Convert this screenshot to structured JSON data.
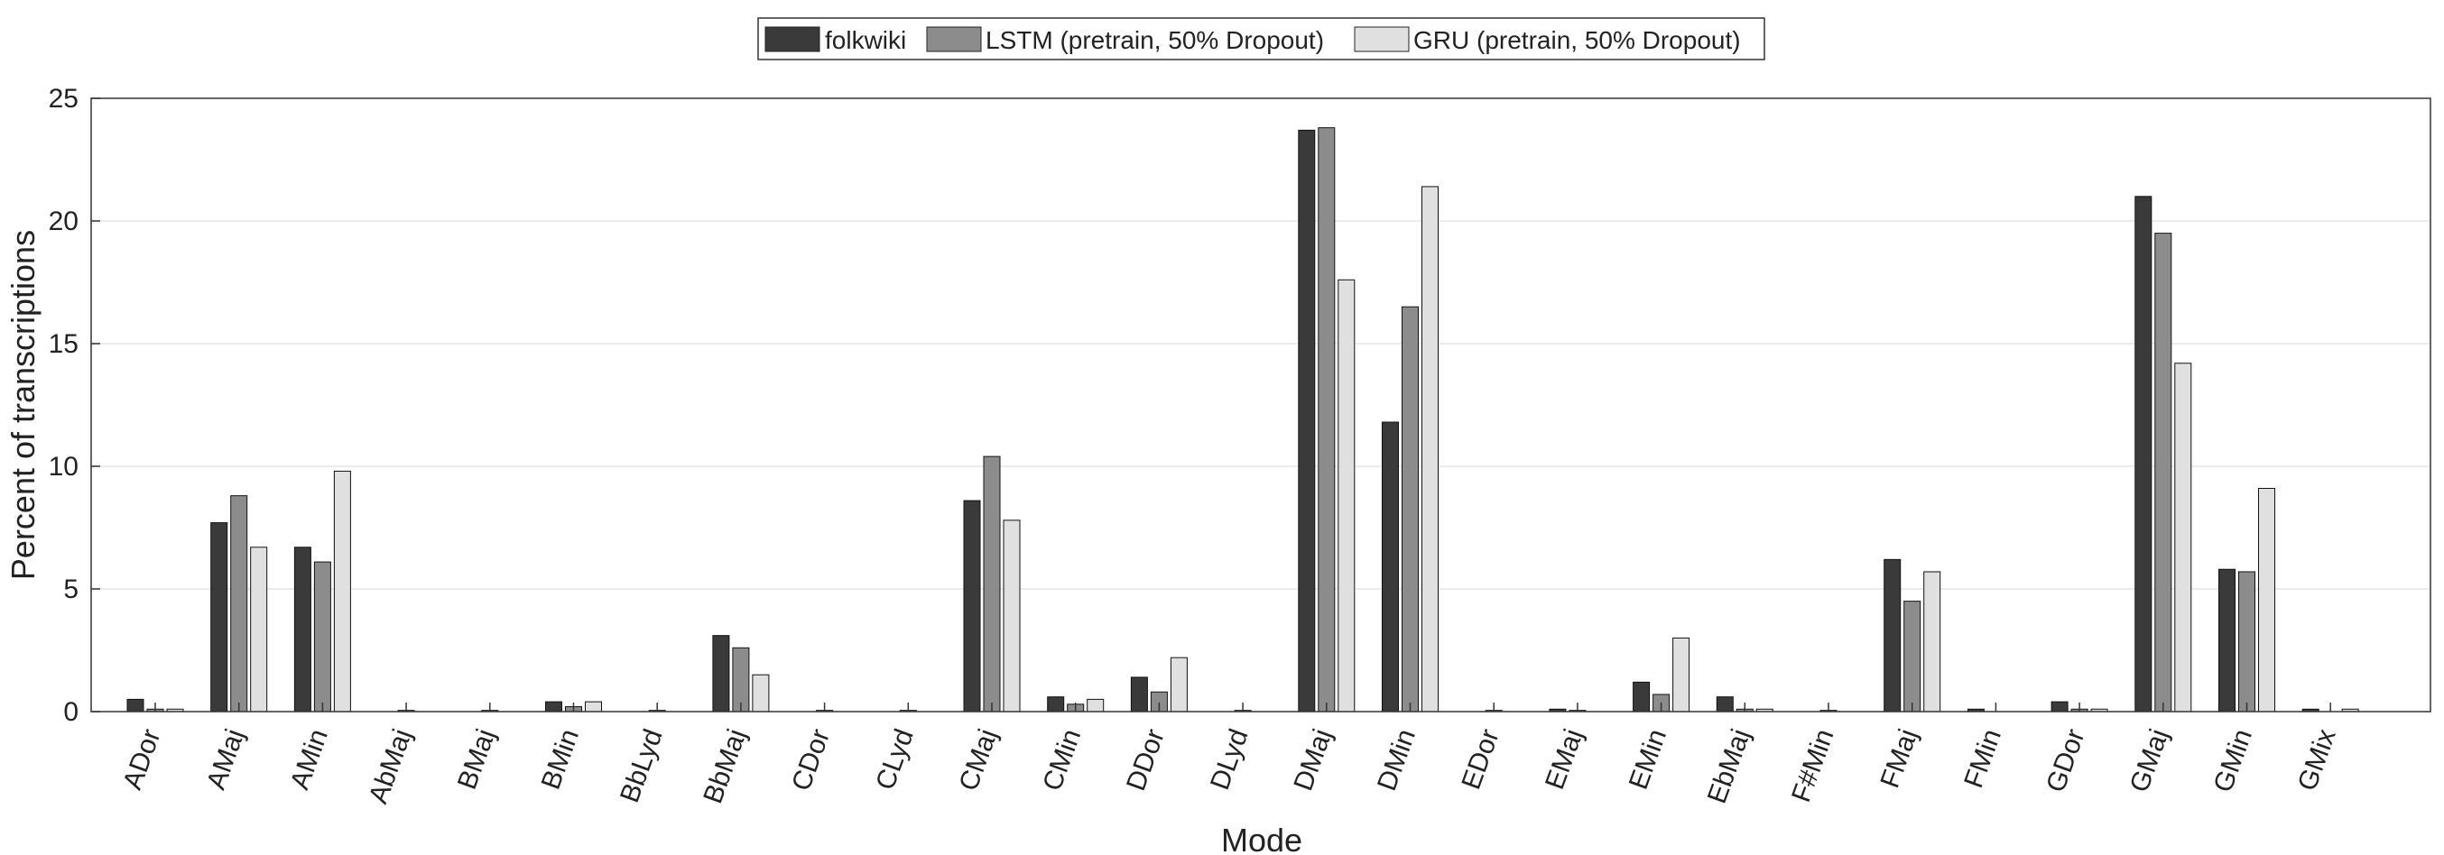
{
  "chart_data": {
    "type": "bar",
    "title": "",
    "xlabel": "Mode",
    "ylabel": "Percent of transcriptions",
    "ylim": [
      0,
      25
    ],
    "yticks": [
      0,
      5,
      10,
      15,
      20,
      25
    ],
    "grid": "horizontal",
    "legend_position": "top-center",
    "categories": [
      "ADor",
      "AMaj",
      "AMin",
      "AbMaj",
      "BMaj",
      "BMin",
      "BbLyd",
      "BbMaj",
      "CDor",
      "CLyd",
      "CMaj",
      "CMin",
      "DDor",
      "DLyd",
      "DMaj",
      "DMin",
      "EDor",
      "EMaj",
      "EMin",
      "EbMaj",
      "F#Min",
      "FMaj",
      "FMin",
      "GDor",
      "GMaj",
      "GMin",
      "GMix"
    ],
    "series": [
      {
        "name": "folkwiki",
        "color": "#3a3a3a",
        "values": [
          0.5,
          7.7,
          6.7,
          0,
          0,
          0.4,
          0,
          3.1,
          0,
          0,
          8.6,
          0.6,
          1.4,
          0,
          23.7,
          11.8,
          0,
          0.1,
          1.2,
          0.6,
          0,
          6.2,
          0.1,
          0.4,
          21.0,
          5.8,
          0.1
        ]
      },
      {
        "name": "LSTM (pretrain, 50% Dropout)",
        "color": "#8c8c8c",
        "values": [
          0.1,
          8.8,
          6.1,
          0.05,
          0.05,
          0.2,
          0.05,
          2.6,
          0.05,
          0.05,
          10.4,
          0.3,
          0.8,
          0.05,
          23.8,
          16.5,
          0.05,
          0.05,
          0.7,
          0.1,
          0.05,
          4.5,
          0,
          0.1,
          19.5,
          5.7,
          0
        ]
      },
      {
        "name": "GRU (pretrain, 50% Dropout)",
        "color": "#e0e0e0",
        "values": [
          0.1,
          6.7,
          9.8,
          0,
          0,
          0.4,
          0,
          1.5,
          0,
          0,
          7.8,
          0.5,
          2.2,
          0,
          17.6,
          21.4,
          0,
          0,
          3.0,
          0.1,
          0,
          5.7,
          0,
          0.1,
          14.2,
          9.1,
          0.1
        ]
      }
    ]
  }
}
